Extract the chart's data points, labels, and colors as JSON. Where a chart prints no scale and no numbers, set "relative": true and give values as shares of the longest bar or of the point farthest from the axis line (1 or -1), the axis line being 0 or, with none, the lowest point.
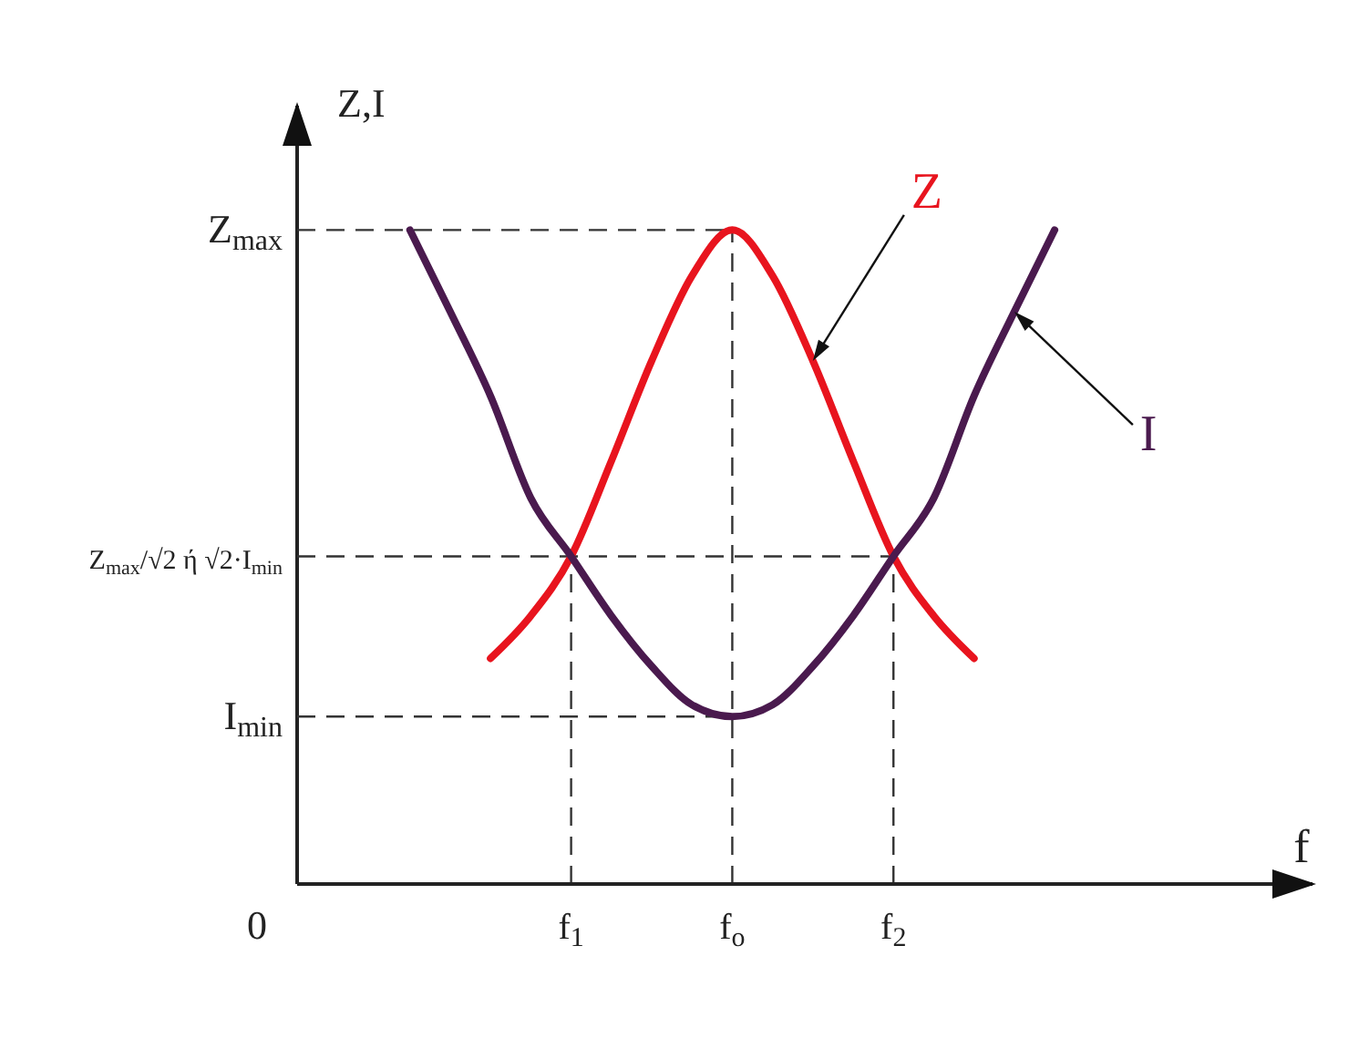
{
  "chart_data": {
    "type": "line",
    "relative": true,
    "xlabel": "f",
    "ylabel": "Z,I",
    "categories": [
      null,
      null,
      null,
      null,
      "f$_{1}$",
      null,
      null,
      null,
      "f$_{o}$",
      null,
      null,
      null,
      "f$_{2}$",
      null,
      null,
      null,
      null
    ],
    "series": [
      {
        "name": "Z",
        "color": "#e8141e",
        "values": [
          null,
          null,
          0.345,
          0.41,
          0.501,
          0.647,
          0.8,
          0.93,
          1.0,
          0.93,
          0.8,
          0.647,
          0.501,
          0.41,
          0.345,
          null,
          null
        ]
      },
      {
        "name": "I",
        "color": "#4a1a4e",
        "values": [
          1.0,
          0.875,
          0.746,
          0.59,
          0.501,
          0.41,
          0.333,
          0.274,
          0.256,
          0.274,
          0.333,
          0.41,
          0.501,
          0.59,
          0.746,
          0.875,
          1.0
        ]
      }
    ],
    "ref_lines": [
      {
        "axis": "y",
        "value": 1.0,
        "label": "Z$_{max}$",
        "line_style": "dashed"
      },
      {
        "axis": "y",
        "value": 0.501,
        "label": "Z$_{max}$/√2 ή √2·I$_{min}$",
        "line_style": "dashed"
      },
      {
        "axis": "y",
        "value": 0.256,
        "label": "I$_{min}$",
        "line_style": "dashed"
      },
      {
        "axis": "x",
        "value": "f$_{1}$",
        "line_style": "dashed"
      },
      {
        "axis": "x",
        "value": "f$_{o}$",
        "line_style": "dashed"
      },
      {
        "axis": "x",
        "value": "f$_{2}$",
        "line_style": "dashed"
      }
    ],
    "annotations": [
      "0"
    ],
    "line_style": "solid"
  }
}
